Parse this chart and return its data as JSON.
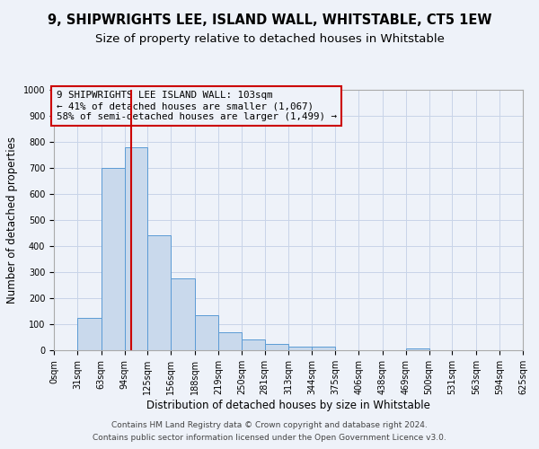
{
  "title": "9, SHIPWRIGHTS LEE, ISLAND WALL, WHITSTABLE, CT5 1EW",
  "subtitle": "Size of property relative to detached houses in Whitstable",
  "xlabel": "Distribution of detached houses by size in Whitstable",
  "ylabel": "Number of detached properties",
  "bin_edges": [
    0,
    31,
    63,
    94,
    125,
    156,
    188,
    219,
    250,
    281,
    313,
    344,
    375,
    406,
    438,
    469,
    500,
    531,
    563,
    594,
    625
  ],
  "bar_heights": [
    0,
    125,
    700,
    780,
    440,
    275,
    135,
    68,
    40,
    25,
    15,
    15,
    0,
    0,
    0,
    8,
    0,
    0,
    0,
    0
  ],
  "bar_color": "#c9d9ec",
  "bar_edge_color": "#5b9bd5",
  "property_line_x": 103,
  "property_line_color": "#cc0000",
  "annotation_text": "9 SHIPWRIGHTS LEE ISLAND WALL: 103sqm\n← 41% of detached houses are smaller (1,067)\n58% of semi-detached houses are larger (1,499) →",
  "annotation_box_edge_color": "#cc0000",
  "footer_line1": "Contains HM Land Registry data © Crown copyright and database right 2024.",
  "footer_line2": "Contains public sector information licensed under the Open Government Licence v3.0.",
  "ylim": [
    0,
    1000
  ],
  "yticks": [
    0,
    100,
    200,
    300,
    400,
    500,
    600,
    700,
    800,
    900,
    1000
  ],
  "bg_color": "#eef2f9",
  "grid_color": "#c8d4e8",
  "title_fontsize": 10.5,
  "subtitle_fontsize": 9.5,
  "tick_label_fontsize": 7,
  "axis_label_fontsize": 8.5,
  "footer_fontsize": 6.5
}
